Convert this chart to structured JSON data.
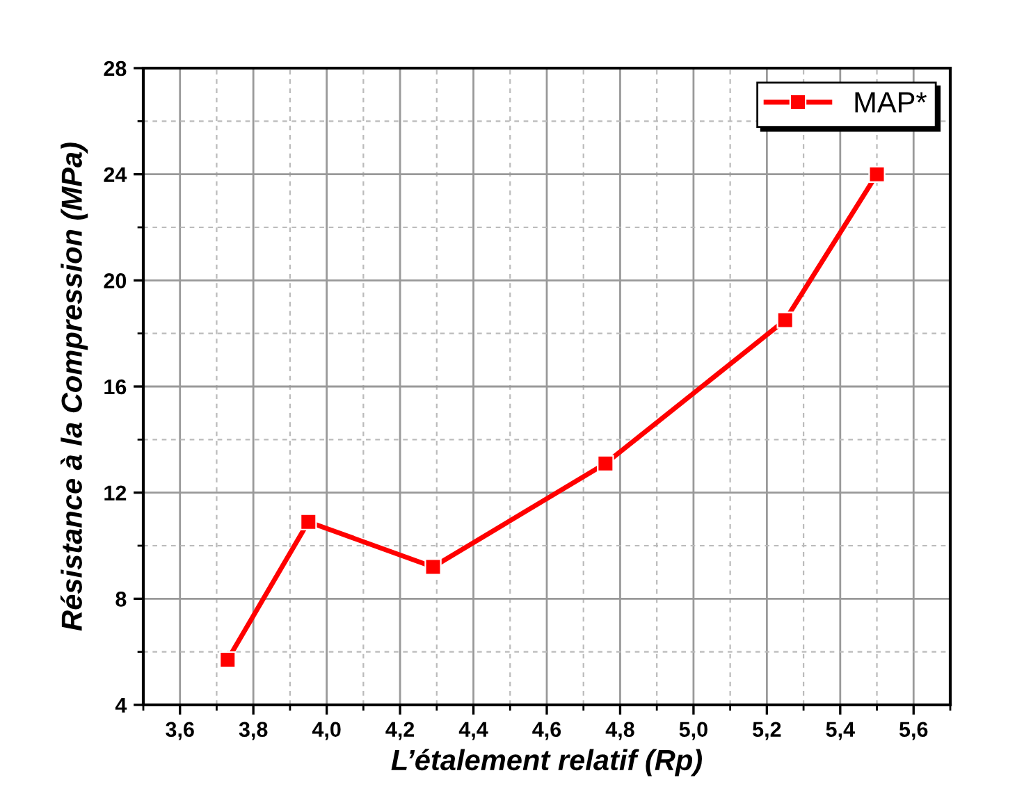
{
  "chart_data": {
    "type": "line",
    "xlabel": "L’étalement relatif (Rp)",
    "ylabel": "Résistance à la Compression (MPa)",
    "x": [
      3.73,
      3.95,
      4.29,
      4.76,
      5.25,
      5.5
    ],
    "series": [
      {
        "name": "MAP*",
        "color": "#ff0000",
        "values": [
          5.7,
          10.9,
          9.2,
          13.1,
          18.5,
          24.0
        ]
      }
    ],
    "xlim": [
      3.5,
      5.7
    ],
    "xticks": [
      {
        "value": 3.6,
        "label": "3,6"
      },
      {
        "value": 3.8,
        "label": "3,8"
      },
      {
        "value": 4.0,
        "label": "4,0"
      },
      {
        "value": 4.2,
        "label": "4,2"
      },
      {
        "value": 4.4,
        "label": "4,4"
      },
      {
        "value": 4.6,
        "label": "4,6"
      },
      {
        "value": 4.8,
        "label": "4,8"
      },
      {
        "value": 5.0,
        "label": "5,0"
      },
      {
        "value": 5.2,
        "label": "5,2"
      },
      {
        "value": 5.4,
        "label": "5,4"
      },
      {
        "value": 5.6,
        "label": "5,6"
      }
    ],
    "ylim": [
      4,
      28
    ],
    "yticks": [
      4,
      8,
      12,
      16,
      20,
      24,
      28
    ],
    "grid": true,
    "legend": "top right",
    "marker": "square",
    "line_style": "solid"
  }
}
